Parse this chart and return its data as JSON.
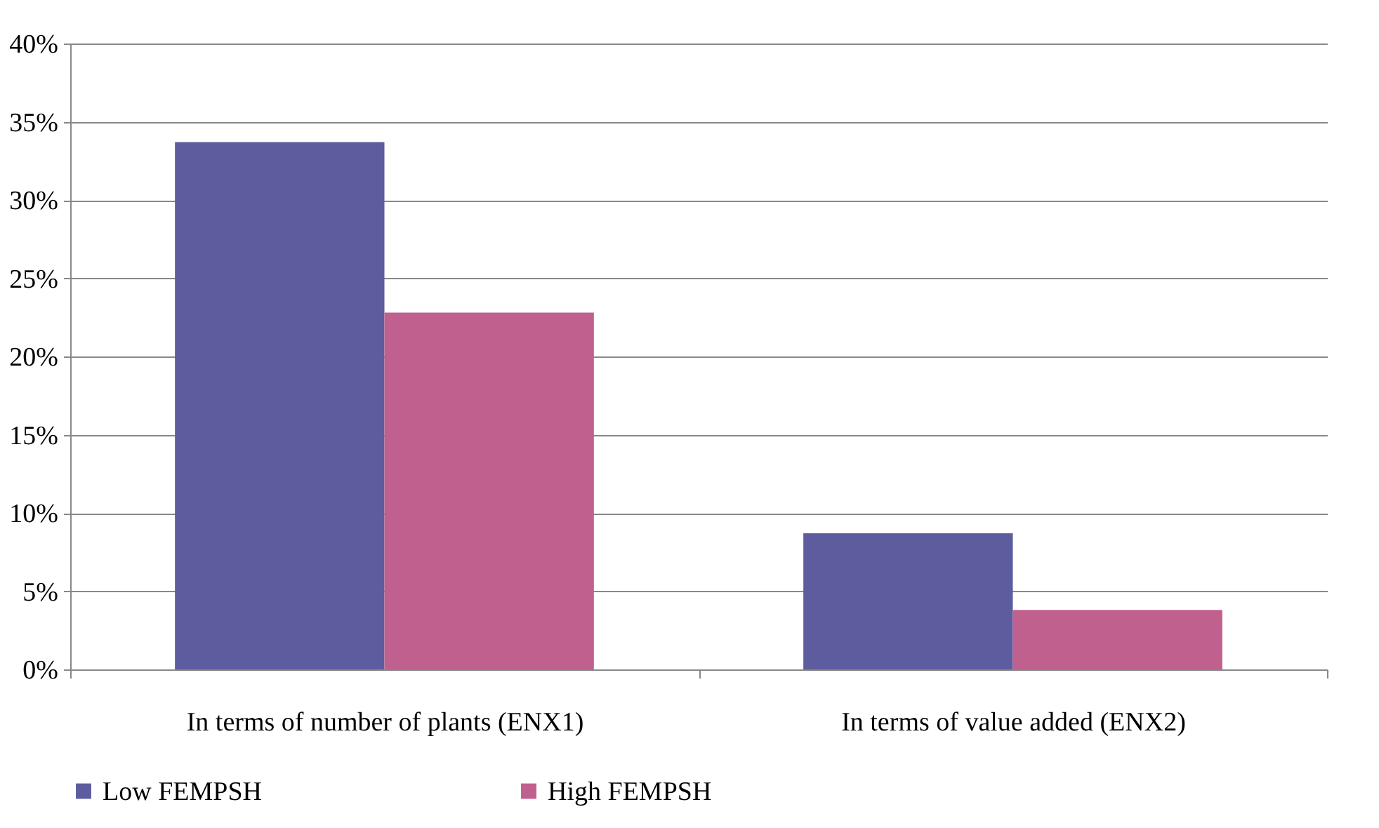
{
  "chart_data": {
    "type": "bar",
    "categories": [
      "In terms of number of plants (ENX1)",
      "In terms of value added (ENX2)"
    ],
    "series": [
      {
        "name": "Low FEMPSH",
        "color": "#5c5c9e",
        "values": [
          33.7,
          8.7
        ]
      },
      {
        "name": "High FEMPSH",
        "color": "#c0608e",
        "values": [
          22.8,
          3.8
        ]
      }
    ],
    "ylim": [
      0,
      40
    ],
    "yticks": [
      {
        "value": 0,
        "label": "0%"
      },
      {
        "value": 5,
        "label": "5%"
      },
      {
        "value": 10,
        "label": "10%"
      },
      {
        "value": 15,
        "label": "15%"
      },
      {
        "value": 20,
        "label": "20%"
      },
      {
        "value": 25,
        "label": "25%"
      },
      {
        "value": 30,
        "label": "30%"
      },
      {
        "value": 35,
        "label": "35%"
      },
      {
        "value": 40,
        "label": "40%"
      }
    ],
    "grid": "y",
    "legend": "bottom"
  }
}
